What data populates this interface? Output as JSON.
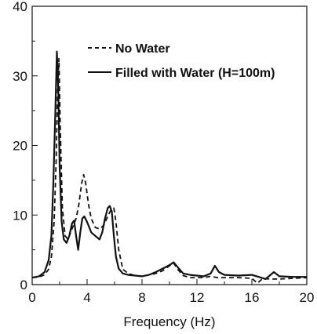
{
  "chart_data": {
    "type": "line",
    "title": "",
    "xlabel": "Frequency (Hz)",
    "ylabel": "",
    "xlim": [
      0,
      20
    ],
    "ylim": [
      0,
      40
    ],
    "xticks": [
      0,
      4,
      8,
      12,
      16,
      20
    ],
    "yticks": [
      0,
      10,
      20,
      30,
      40
    ],
    "grid": false,
    "legend_position": "top-right",
    "series": [
      {
        "name": "No Water",
        "style": "dashed",
        "color": "#111111",
        "x": [
          0,
          0.5,
          0.9,
          1.2,
          1.4,
          1.6,
          1.75,
          1.85,
          1.95,
          2.05,
          2.2,
          2.4,
          2.6,
          2.8,
          3.0,
          3.2,
          3.4,
          3.6,
          3.75,
          3.9,
          4.1,
          4.3,
          4.6,
          4.9,
          5.2,
          5.5,
          5.75,
          5.95,
          6.1,
          6.3,
          6.6,
          7.0,
          7.5,
          8.0,
          8.5,
          9.0,
          9.5,
          10.0,
          10.3,
          10.6,
          11.0,
          11.5,
          12.0,
          12.5,
          13.0,
          13.5,
          14.0,
          15.0,
          16.0,
          16.4,
          16.8,
          17.3,
          18.0,
          19.0,
          20.0
        ],
        "y": [
          1.0,
          1.1,
          1.4,
          2.2,
          4.0,
          9.0,
          18.0,
          27.5,
          32.5,
          22.0,
          11.0,
          7.0,
          6.5,
          7.5,
          8.5,
          9.5,
          11.5,
          14.5,
          15.8,
          14.5,
          11.5,
          9.5,
          8.2,
          8.0,
          8.5,
          9.8,
          10.8,
          11.0,
          9.0,
          5.0,
          2.2,
          1.6,
          1.3,
          1.2,
          1.4,
          1.6,
          2.0,
          2.7,
          3.1,
          2.2,
          1.3,
          1.0,
          1.0,
          1.0,
          1.2,
          1.0,
          1.0,
          1.0,
          0.9,
          0.2,
          0.9,
          0.8,
          0.8,
          0.9,
          1.0
        ]
      },
      {
        "name": "Filled with Water (H=100m)",
        "style": "solid",
        "color": "#111111",
        "x": [
          0,
          0.5,
          0.9,
          1.2,
          1.4,
          1.55,
          1.7,
          1.8,
          1.9,
          2.0,
          2.15,
          2.3,
          2.5,
          2.7,
          2.9,
          3.05,
          3.2,
          3.35,
          3.5,
          3.65,
          3.8,
          4.0,
          4.3,
          4.6,
          4.9,
          5.1,
          5.3,
          5.5,
          5.65,
          5.8,
          5.95,
          6.1,
          6.3,
          6.6,
          7.0,
          7.5,
          8.0,
          8.5,
          9.0,
          9.5,
          10.0,
          10.3,
          10.6,
          11.0,
          11.5,
          12.0,
          12.5,
          13.0,
          13.3,
          13.6,
          14.0,
          15.0,
          16.0,
          16.5,
          17.0,
          17.6,
          18.0,
          19.0,
          20.0
        ],
        "y": [
          1.0,
          1.2,
          1.8,
          3.5,
          7.0,
          15.0,
          26.0,
          33.5,
          28.0,
          17.0,
          9.0,
          6.5,
          6.0,
          7.0,
          8.8,
          9.2,
          7.0,
          5.0,
          7.5,
          9.5,
          9.8,
          9.0,
          7.5,
          7.0,
          6.5,
          7.5,
          9.5,
          11.0,
          11.3,
          10.5,
          7.0,
          4.0,
          2.3,
          1.6,
          1.4,
          1.3,
          1.2,
          1.4,
          1.8,
          2.3,
          2.8,
          3.2,
          2.5,
          1.6,
          1.4,
          1.3,
          1.2,
          1.6,
          2.7,
          1.8,
          1.4,
          1.3,
          1.4,
          1.1,
          0.8,
          1.8,
          1.2,
          1.1,
          1.1
        ]
      }
    ]
  }
}
